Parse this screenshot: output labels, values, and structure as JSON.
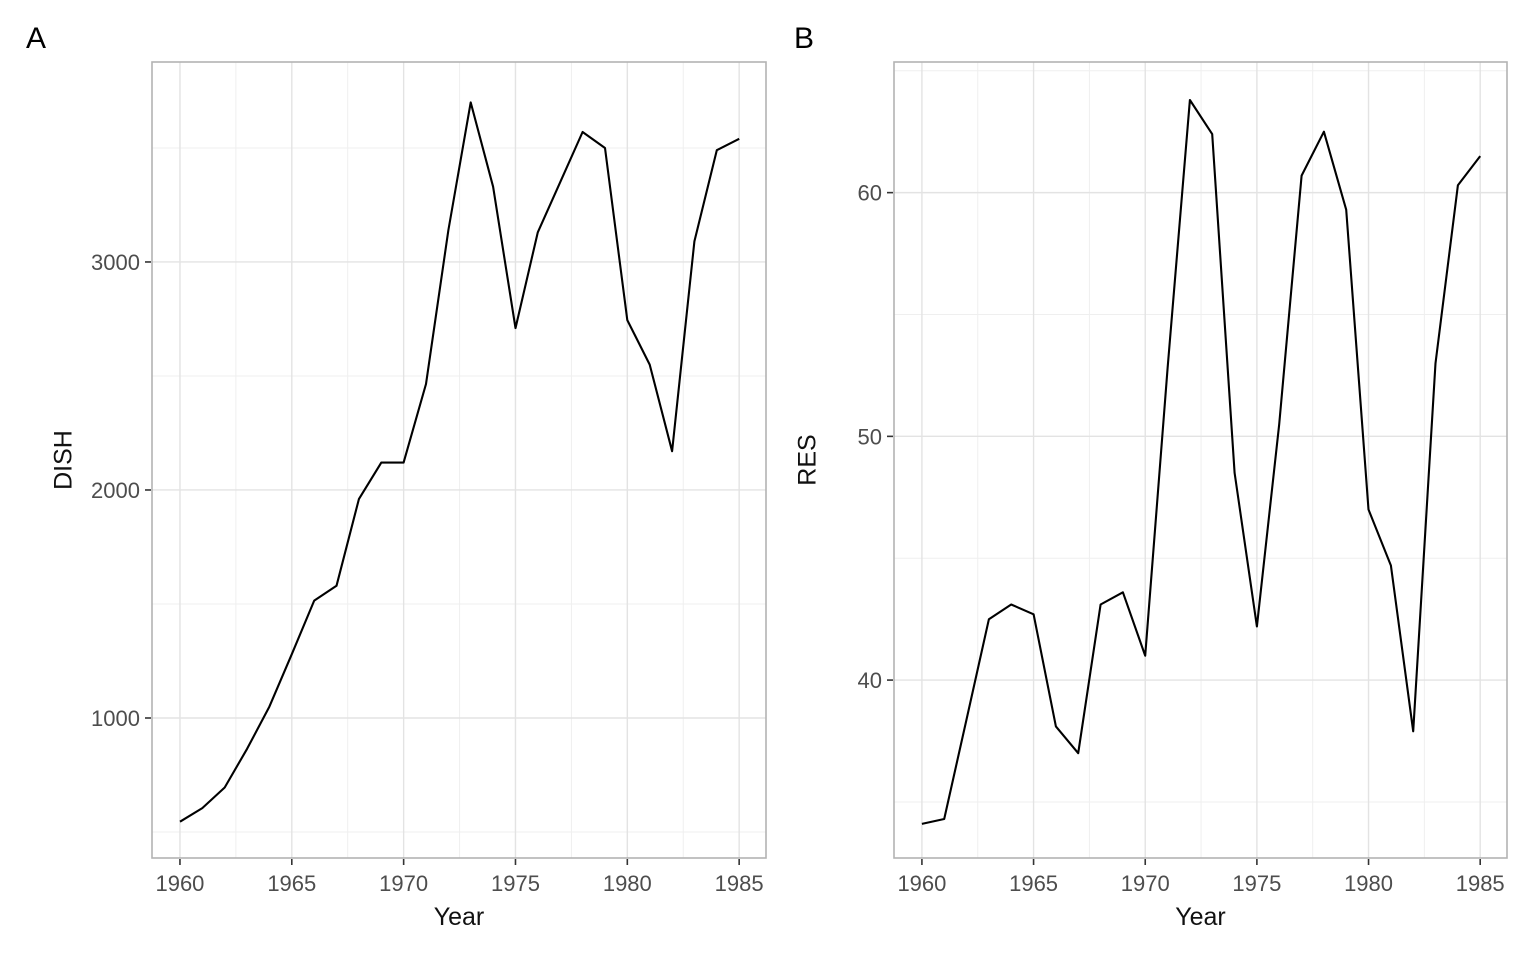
{
  "style": {
    "background": "#ffffff",
    "grid_major": "#e3e3e3",
    "grid_minor": "#efefef",
    "panel_border": "#b3b3b3",
    "tick_color": "#333333",
    "tick_label_color": "#4d4d4d",
    "axis_title_color": "#111111",
    "panel_label_color": "#000000",
    "line_color": "#000000"
  },
  "chart_data": [
    {
      "type": "line",
      "panel_label": "A",
      "title": "",
      "xlabel": "Year",
      "ylabel": "DISH",
      "legend": "none",
      "grid": true,
      "x": [
        1960,
        1961,
        1962,
        1963,
        1964,
        1965,
        1966,
        1967,
        1968,
        1969,
        1970,
        1971,
        1972,
        1973,
        1974,
        1975,
        1976,
        1977,
        1978,
        1979,
        1980,
        1981,
        1982,
        1983,
        1984,
        1985
      ],
      "values": [
        545,
        605,
        695,
        865,
        1050,
        1280,
        1515,
        1580,
        1960,
        2120,
        2120,
        2465,
        3140,
        3700,
        3330,
        2710,
        3130,
        3350,
        3570,
        3500,
        2745,
        2550,
        2170,
        3090,
        3490,
        3540
      ],
      "x_breaks": [
        1960,
        1965,
        1970,
        1975,
        1980,
        1985
      ],
      "x_minor_breaks": [
        1962.5,
        1967.5,
        1972.5,
        1977.5,
        1982.5
      ],
      "y_breaks": [
        1000,
        2000,
        3000
      ],
      "y_minor_breaks": [
        500,
        1500,
        2500,
        3500
      ],
      "xlim": [
        1958.75,
        1986.2
      ],
      "ylim": [
        386,
        3877
      ],
      "line_color": "#000000"
    },
    {
      "type": "line",
      "panel_label": "B",
      "title": "",
      "xlabel": "Year",
      "ylabel": "RES",
      "legend": "none",
      "grid": true,
      "x": [
        1960,
        1961,
        1962,
        1963,
        1964,
        1965,
        1966,
        1967,
        1968,
        1969,
        1970,
        1971,
        1972,
        1973,
        1974,
        1975,
        1976,
        1977,
        1978,
        1979,
        1980,
        1981,
        1982,
        1983,
        1984,
        1985
      ],
      "values": [
        34.1,
        34.3,
        38.4,
        42.5,
        43.1,
        42.7,
        38.1,
        37.0,
        43.1,
        43.6,
        41.0,
        52.8,
        63.8,
        62.4,
        48.5,
        42.2,
        50.5,
        60.7,
        62.5,
        59.3,
        47.0,
        44.7,
        37.9,
        53.0,
        60.3,
        61.5
      ],
      "x_breaks": [
        1960,
        1965,
        1970,
        1975,
        1980,
        1985
      ],
      "x_minor_breaks": [
        1962.5,
        1967.5,
        1972.5,
        1977.5,
        1982.5
      ],
      "y_breaks": [
        40,
        50,
        60
      ],
      "y_minor_breaks": [
        35,
        45,
        55,
        65
      ],
      "xlim": [
        1958.75,
        1986.2
      ],
      "ylim": [
        32.7,
        65.36
      ],
      "line_color": "#000000"
    }
  ]
}
